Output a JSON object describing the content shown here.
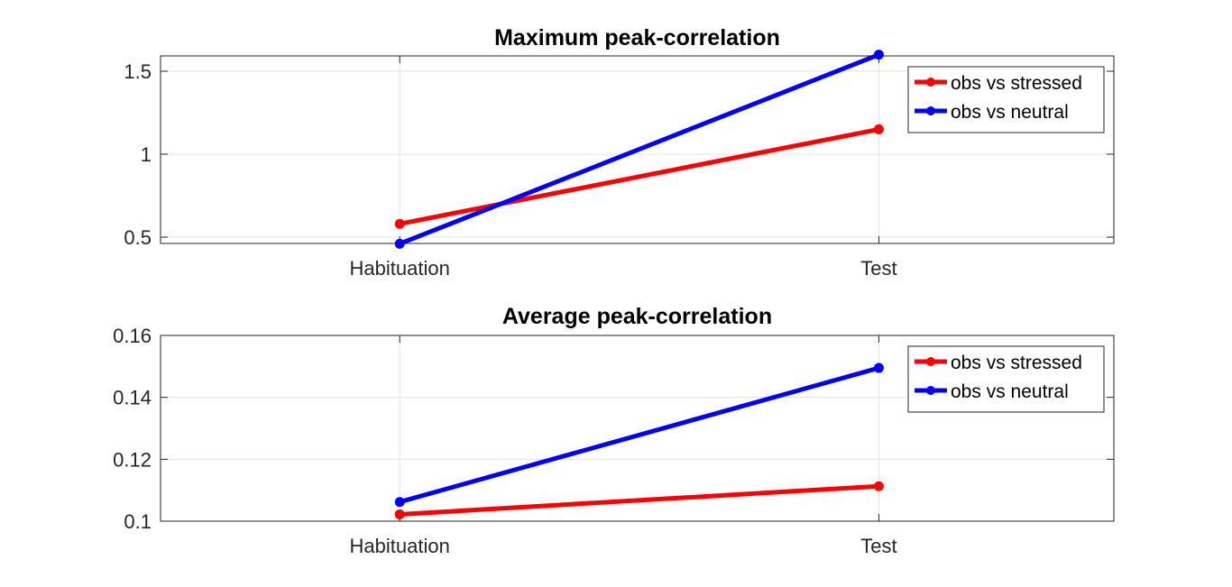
{
  "chart_data": [
    {
      "type": "line",
      "title": "Maximum peak-correlation",
      "categories": [
        "Habituation",
        "Test"
      ],
      "yticks": [
        "0.5",
        "1",
        "1.5"
      ],
      "ylim": [
        0.46,
        1.6
      ],
      "grid": true,
      "legend_position": "top-right",
      "series": [
        {
          "name": "obs vs stressed",
          "color": "#ff0000",
          "values": [
            0.58,
            1.15
          ]
        },
        {
          "name": "obs vs neutral",
          "color": "#0000ff",
          "values": [
            0.46,
            1.6
          ]
        }
      ]
    },
    {
      "type": "line",
      "title": "Average peak-correlation",
      "categories": [
        "Habituation",
        "Test"
      ],
      "yticks": [
        "0.1",
        "0.12",
        "0.14",
        "0.16"
      ],
      "ylim": [
        0.1,
        0.16
      ],
      "grid": true,
      "legend_position": "top-right",
      "series": [
        {
          "name": "obs vs stressed",
          "color": "#ff0000",
          "values": [
            0.1022,
            0.1113
          ]
        },
        {
          "name": "obs vs neutral",
          "color": "#0000ff",
          "values": [
            0.1062,
            0.1495
          ]
        }
      ]
    }
  ]
}
